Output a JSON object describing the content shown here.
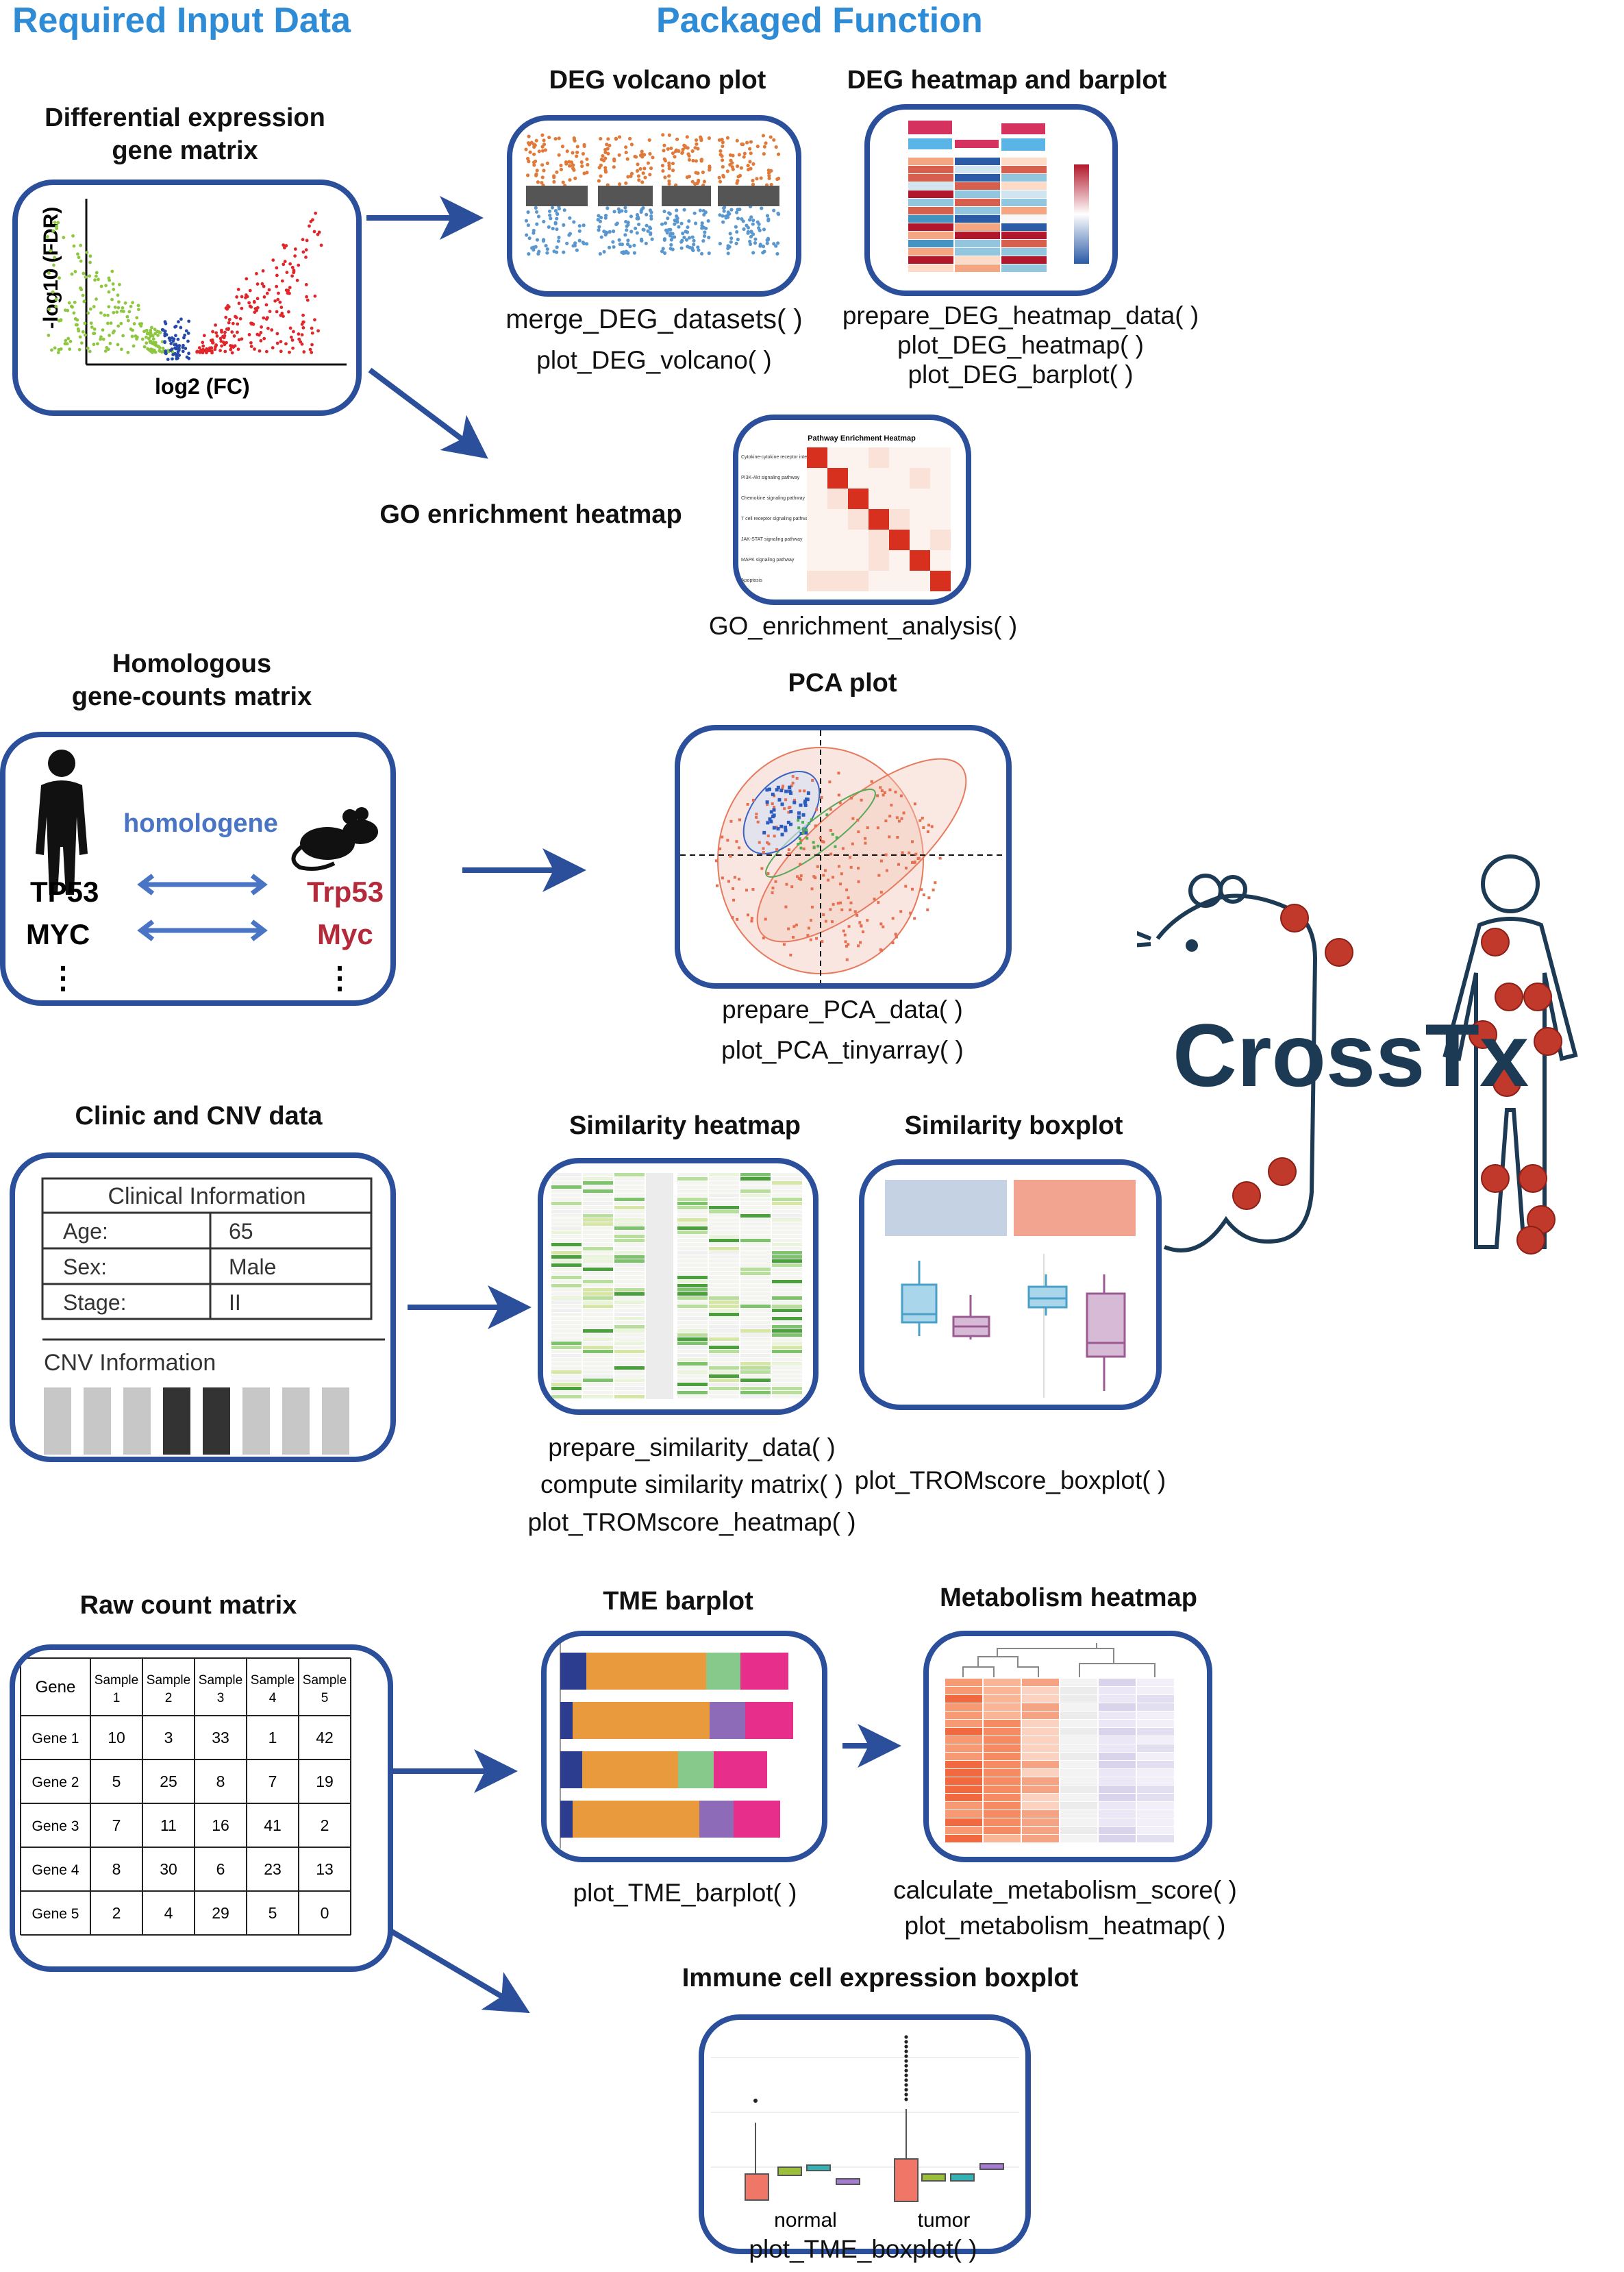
{
  "headers": {
    "input": "Required Input Data",
    "function": "Packaged Function"
  },
  "deg_section": {
    "input_title": "Differential expression\ngene matrix",
    "input_plot": {
      "ylabel": "-log10 (FDR)",
      "xlabel": "log2 (FC)"
    },
    "volcano": {
      "title": "DEG volcano plot",
      "functions": [
        "merge_DEG_datasets( )",
        "plot_DEG_volcano( )"
      ]
    },
    "heatmap": {
      "title": "DEG heatmap and barplot",
      "functions": [
        "prepare_DEG_heatmap_data( )",
        "plot_DEG_heatmap( )",
        "plot_DEG_barplot( )"
      ]
    },
    "go": {
      "title": "GO enrichment heatmap",
      "chart_title": "Pathway Enrichment Heatmap",
      "rows": [
        "Cytokine-cytokine receptor interaction",
        "PI3K-Akt signaling pathway",
        "Chemokine signaling pathway",
        "T cell receptor signaling pathway",
        "JAK-STAT signaling pathway",
        "MAPK signaling pathway",
        "Apoptosis"
      ],
      "function": "GO_enrichment_analysis( )"
    }
  },
  "homolog_section": {
    "input_title": "Homologous\ngene-counts matrix",
    "bridge": "homologene",
    "human_genes": [
      "TP53",
      "MYC"
    ],
    "mouse_genes": [
      "Trp53",
      "Myc"
    ],
    "ellipsis": "⋮",
    "pca": {
      "title": "PCA plot",
      "functions": [
        "prepare_PCA_data( )",
        "plot_PCA_tinyarray( )"
      ]
    }
  },
  "brand": {
    "name": "CrossTx"
  },
  "clinic_section": {
    "input_title": "Clinic and CNV data",
    "clinical_header": "Clinical Information",
    "clinical_rows": [
      {
        "label": "Age:",
        "value": "65"
      },
      {
        "label": "Sex:",
        "value": "Male"
      },
      {
        "label": "Stage:",
        "value": "II"
      }
    ],
    "cnv_header": "CNV Information",
    "sim_heatmap": {
      "title": "Similarity heatmap",
      "functions": [
        "prepare_similarity_data( )",
        "compute similarity matrix( )",
        "plot_TROMscore_heatmap( )"
      ]
    },
    "sim_boxplot": {
      "title": "Similarity boxplot",
      "functions": [
        "plot_TROMscore_boxplot( )"
      ]
    }
  },
  "raw_section": {
    "input_title": "Raw count matrix",
    "table": {
      "columns": [
        "Gene",
        "Sample\n1",
        "Sample\n2",
        "Sample\n3",
        "Sample\n4",
        "Sample\n5"
      ],
      "rows": [
        [
          "Gene 1",
          "10",
          "3",
          "33",
          "1",
          "42"
        ],
        [
          "Gene 2",
          "5",
          "25",
          "8",
          "7",
          "19"
        ],
        [
          "Gene 3",
          "7",
          "11",
          "16",
          "41",
          "2"
        ],
        [
          "Gene 4",
          "8",
          "30",
          "6",
          "23",
          "13"
        ],
        [
          "Gene 5",
          "2",
          "4",
          "29",
          "5",
          "0"
        ]
      ]
    },
    "tme": {
      "title": "TME barplot",
      "functions": [
        "plot_TME_barplot( )"
      ]
    },
    "metab": {
      "title": "Metabolism heatmap",
      "functions": [
        "calculate_metabolism_score( )",
        "plot_metabolism_heatmap( )"
      ]
    },
    "immune": {
      "title": "Immune cell expression boxplot",
      "groups": [
        "normal",
        "tumor"
      ],
      "functions": [
        "plot_TME_boxplot( )"
      ]
    }
  },
  "colors": {
    "accent": "#2b4f9a",
    "header": "#2e8bd6",
    "brand": "#1d3a55",
    "tumor": "#c0392b"
  }
}
